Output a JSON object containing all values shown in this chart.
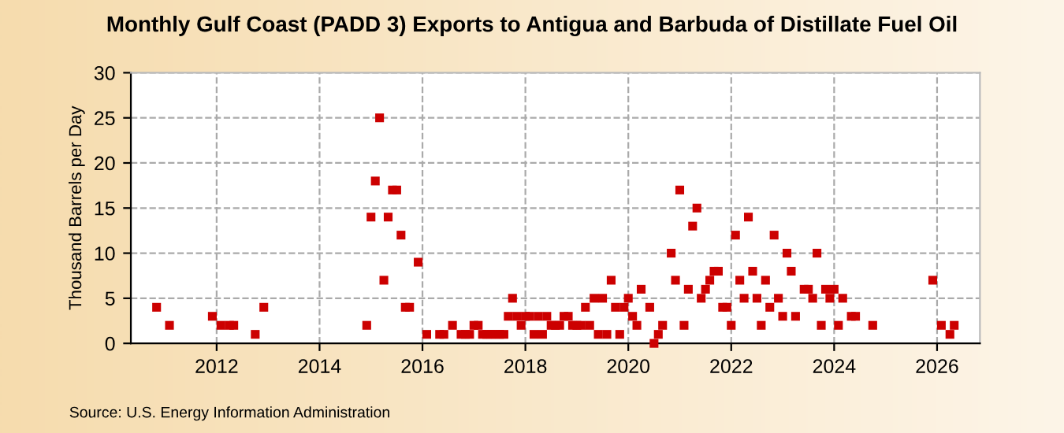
{
  "chart_data": {
    "type": "scatter",
    "title": "Monthly Gulf Coast (PADD 3) Exports to Antigua and Barbuda of Distillate Fuel Oil",
    "ylabel": "Thousand Barrels per Day",
    "annotations": [
      "Source: U.S. Energy Information Administration"
    ],
    "series": [
      {
        "color": "#cc0000",
        "x": [
          "2010-11",
          "2011-02",
          "2011-12",
          "2012-02",
          "2012-04",
          "2012-05",
          "2012-10",
          "2012-12",
          "2014-12",
          "2015-01",
          "2015-02",
          "2015-03",
          "2015-04",
          "2015-05",
          "2015-06",
          "2015-07",
          "2015-08",
          "2015-09",
          "2015-10",
          "2015-12",
          "2016-02",
          "2016-05",
          "2016-06",
          "2016-08",
          "2016-10",
          "2016-11",
          "2016-12",
          "2017-01",
          "2017-02",
          "2017-03",
          "2017-04",
          "2017-05",
          "2017-06",
          "2017-07",
          "2017-08",
          "2017-09",
          "2017-10",
          "2017-11",
          "2017-12",
          "2018-01",
          "2018-02",
          "2018-03",
          "2018-04",
          "2018-05",
          "2018-06",
          "2018-07",
          "2018-08",
          "2018-09",
          "2018-10",
          "2018-11",
          "2018-12",
          "2019-01",
          "2019-02",
          "2019-03",
          "2019-04",
          "2019-05",
          "2019-06",
          "2019-07",
          "2019-08",
          "2019-09",
          "2019-10",
          "2019-11",
          "2019-12",
          "2020-01",
          "2020-02",
          "2020-03",
          "2020-04",
          "2020-06",
          "2020-07",
          "2020-08",
          "2020-09",
          "2020-11",
          "2020-12",
          "2021-01",
          "2021-02",
          "2021-03",
          "2021-04",
          "2021-05",
          "2021-06",
          "2021-07",
          "2021-08",
          "2021-09",
          "2021-10",
          "2021-11",
          "2021-12",
          "2022-01",
          "2022-02",
          "2022-03",
          "2022-04",
          "2022-05",
          "2022-06",
          "2022-07",
          "2022-08",
          "2022-09",
          "2022-10",
          "2022-11",
          "2022-12",
          "2023-01",
          "2023-02",
          "2023-03",
          "2023-04",
          "2023-06",
          "2023-07",
          "2023-08",
          "2023-09",
          "2023-10",
          "2023-11",
          "2023-12",
          "2024-01",
          "2024-02",
          "2024-03",
          "2024-05",
          "2024-06",
          "2024-10",
          "2025-12",
          "2026-02",
          "2026-04",
          "2026-05"
        ],
        "values": [
          4,
          2,
          3,
          2,
          2,
          2,
          1,
          4,
          2,
          14,
          18,
          25,
          7,
          14,
          17,
          17,
          12,
          4,
          4,
          9,
          1,
          1,
          1,
          2,
          1,
          1,
          1,
          2,
          2,
          1,
          1,
          1,
          1,
          1,
          1,
          3,
          5,
          3,
          2,
          3,
          3,
          1,
          3,
          1,
          3,
          2,
          2,
          2,
          3,
          3,
          2,
          2,
          2,
          4,
          2,
          5,
          1,
          5,
          1,
          7,
          4,
          1,
          4,
          5,
          3,
          2,
          6,
          4,
          0,
          1,
          2,
          10,
          7,
          17,
          2,
          6,
          13,
          15,
          5,
          6,
          7,
          8,
          8,
          4,
          4,
          2,
          12,
          7,
          5,
          14,
          8,
          5,
          2,
          7,
          4,
          12,
          5,
          3,
          10,
          8,
          3,
          6,
          6,
          5,
          10,
          2,
          6,
          5,
          6,
          2,
          5,
          3,
          3,
          2,
          7,
          2,
          1,
          2
        ]
      }
    ],
    "marker": "square",
    "xlim": [
      "2010-05",
      "2026-11"
    ],
    "xticks": [
      {
        "value": "2012-01",
        "label": "2012"
      },
      {
        "value": "2014-01",
        "label": "2014"
      },
      {
        "value": "2016-01",
        "label": "2016"
      },
      {
        "value": "2018-01",
        "label": "2018"
      },
      {
        "value": "2020-01",
        "label": "2020"
      },
      {
        "value": "2022-01",
        "label": "2022"
      },
      {
        "value": "2024-01",
        "label": "2024"
      },
      {
        "value": "2026-01",
        "label": "2026"
      }
    ],
    "ylim": [
      0,
      30
    ],
    "yticks": [
      0,
      5,
      10,
      15,
      20,
      25,
      30
    ],
    "grid": true
  }
}
